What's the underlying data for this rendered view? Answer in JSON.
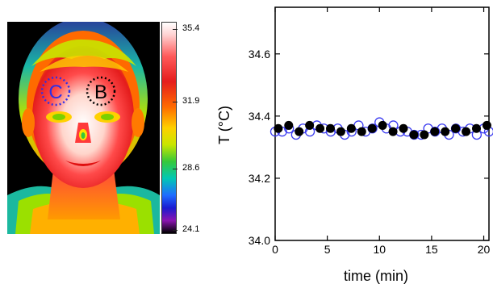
{
  "thermal_image": {
    "region_labels": [
      "C",
      "B"
    ],
    "colorbar_ticks": [
      "35.4",
      "31.9",
      "28.6",
      "24.1"
    ]
  },
  "chart_data": {
    "type": "scatter",
    "xlabel": "time (min)",
    "ylabel": "T (°C)",
    "xlim": [
      0,
      20.5
    ],
    "ylim": [
      34.0,
      34.75
    ],
    "xticks": [
      0,
      5,
      10,
      15,
      20
    ],
    "yticks": [
      34.0,
      34.2,
      34.4,
      34.6
    ],
    "xtick_labels": [
      "0",
      "5",
      "10",
      "15",
      "20"
    ],
    "ytick_labels": [
      "34.0",
      "34.2",
      "34.4",
      "34.6"
    ],
    "grid": false,
    "series": [
      {
        "marker": "open-circle",
        "color": "#3a3af0",
        "x": [
          0,
          0.67,
          1.33,
          2,
          2.67,
          3.33,
          4,
          4.67,
          5.33,
          6,
          6.67,
          7.33,
          8,
          8.67,
          9.33,
          10,
          10.67,
          11.33,
          12,
          12.67,
          13.33,
          14,
          14.67,
          15.33,
          16,
          16.67,
          17.33,
          18,
          18.67,
          19.33,
          20,
          20.5
        ],
        "y": [
          34.35,
          34.35,
          34.36,
          34.34,
          34.36,
          34.35,
          34.37,
          34.36,
          34.35,
          34.36,
          34.34,
          34.35,
          34.37,
          34.35,
          34.36,
          34.38,
          34.36,
          34.37,
          34.35,
          34.35,
          34.34,
          34.34,
          34.36,
          34.35,
          34.36,
          34.34,
          34.36,
          34.35,
          34.36,
          34.34,
          34.36,
          34.35
        ]
      },
      {
        "marker": "filled-circle",
        "color": "#000000",
        "x": [
          0.3,
          1.3,
          2.3,
          3.3,
          4.3,
          5.3,
          6.3,
          7.3,
          8.3,
          9.3,
          10.3,
          11.3,
          12.3,
          13.3,
          14.3,
          15.3,
          16.3,
          17.3,
          18.3,
          19.3,
          20.3
        ],
        "y": [
          34.36,
          34.37,
          34.35,
          34.37,
          34.36,
          34.36,
          34.35,
          34.36,
          34.35,
          34.36,
          34.37,
          34.35,
          34.36,
          34.34,
          34.34,
          34.35,
          34.35,
          34.36,
          34.35,
          34.36,
          34.37
        ]
      }
    ]
  }
}
